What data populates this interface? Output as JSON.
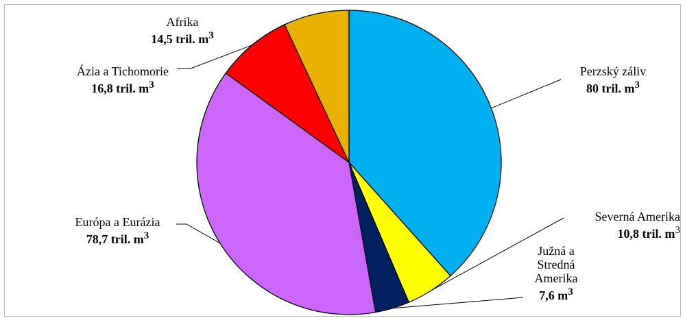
{
  "chart_data": {
    "type": "pie",
    "title": "",
    "slices": [
      {
        "label": "Perzský záliv",
        "value": 80,
        "value_label": "80 tril. m",
        "unit_sup": "3",
        "color": "#00B0F0"
      },
      {
        "label": "Severná Amerika",
        "value": 10.8,
        "value_label": "10,8 tril. m",
        "unit_sup": "3",
        "color": "#FFFF00"
      },
      {
        "label": "Južná a Stredná Amerika",
        "label_lines": [
          "Južná a",
          "Stredná",
          "Amerika"
        ],
        "value": 7.6,
        "value_label": "7,6 m",
        "unit_sup": "3",
        "color": "#002060"
      },
      {
        "label": "Európa a Eurázia",
        "value": 78.7,
        "value_label": "78,7 tril. m",
        "unit_sup": "3",
        "color": "#CC66FF"
      },
      {
        "label": "Ázia a Tichomorie",
        "value": 16.8,
        "value_label": "16,8 tril. m",
        "unit_sup": "3",
        "color": "#FF0000"
      },
      {
        "label": "Afrika",
        "value": 14.5,
        "value_label": "14,5 tril. m",
        "unit_sup": "3",
        "color": "#EAB200"
      }
    ],
    "start": "12 o'clock",
    "direction": "clockwise",
    "legend": "none"
  }
}
